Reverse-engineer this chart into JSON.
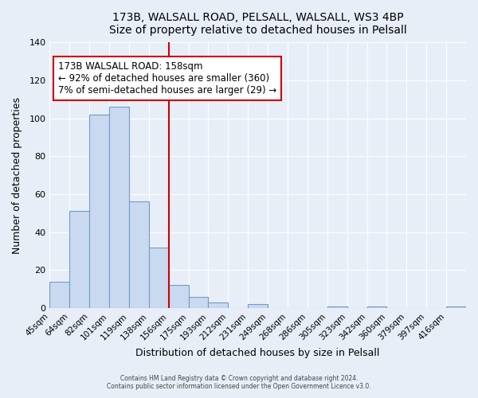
{
  "title": "173B, WALSALL ROAD, PELSALL, WALSALL, WS3 4BP",
  "subtitle": "Size of property relative to detached houses in Pelsall",
  "xlabel": "Distribution of detached houses by size in Pelsall",
  "ylabel": "Number of detached properties",
  "bar_labels": [
    "45sqm",
    "64sqm",
    "82sqm",
    "101sqm",
    "119sqm",
    "138sqm",
    "156sqm",
    "175sqm",
    "193sqm",
    "212sqm",
    "231sqm",
    "249sqm",
    "268sqm",
    "286sqm",
    "305sqm",
    "323sqm",
    "342sqm",
    "360sqm",
    "379sqm",
    "397sqm",
    "416sqm"
  ],
  "bar_heights": [
    14,
    51,
    102,
    106,
    56,
    32,
    12,
    6,
    3,
    0,
    2,
    0,
    0,
    0,
    1,
    0,
    1,
    0,
    0,
    0,
    1
  ],
  "bar_color": "#c9d9f0",
  "bar_edge_color": "#6e9fc5",
  "reference_line_x": 6,
  "annotation_title": "173B WALSALL ROAD: 158sqm",
  "annotation_line1": "← 92% of detached houses are smaller (360)",
  "annotation_line2": "7% of semi-detached houses are larger (29) →",
  "annotation_box_color": "#ffffff",
  "annotation_box_edge_color": "#cc0000",
  "vline_color": "#cc0000",
  "ylim": [
    0,
    140
  ],
  "yticks": [
    0,
    20,
    40,
    60,
    80,
    100,
    120,
    140
  ],
  "background_color": "#e8eef8",
  "grid_color": "#ffffff",
  "footer1": "Contains HM Land Registry data © Crown copyright and database right 2024.",
  "footer2": "Contains public sector information licensed under the Open Government Licence v3.0."
}
